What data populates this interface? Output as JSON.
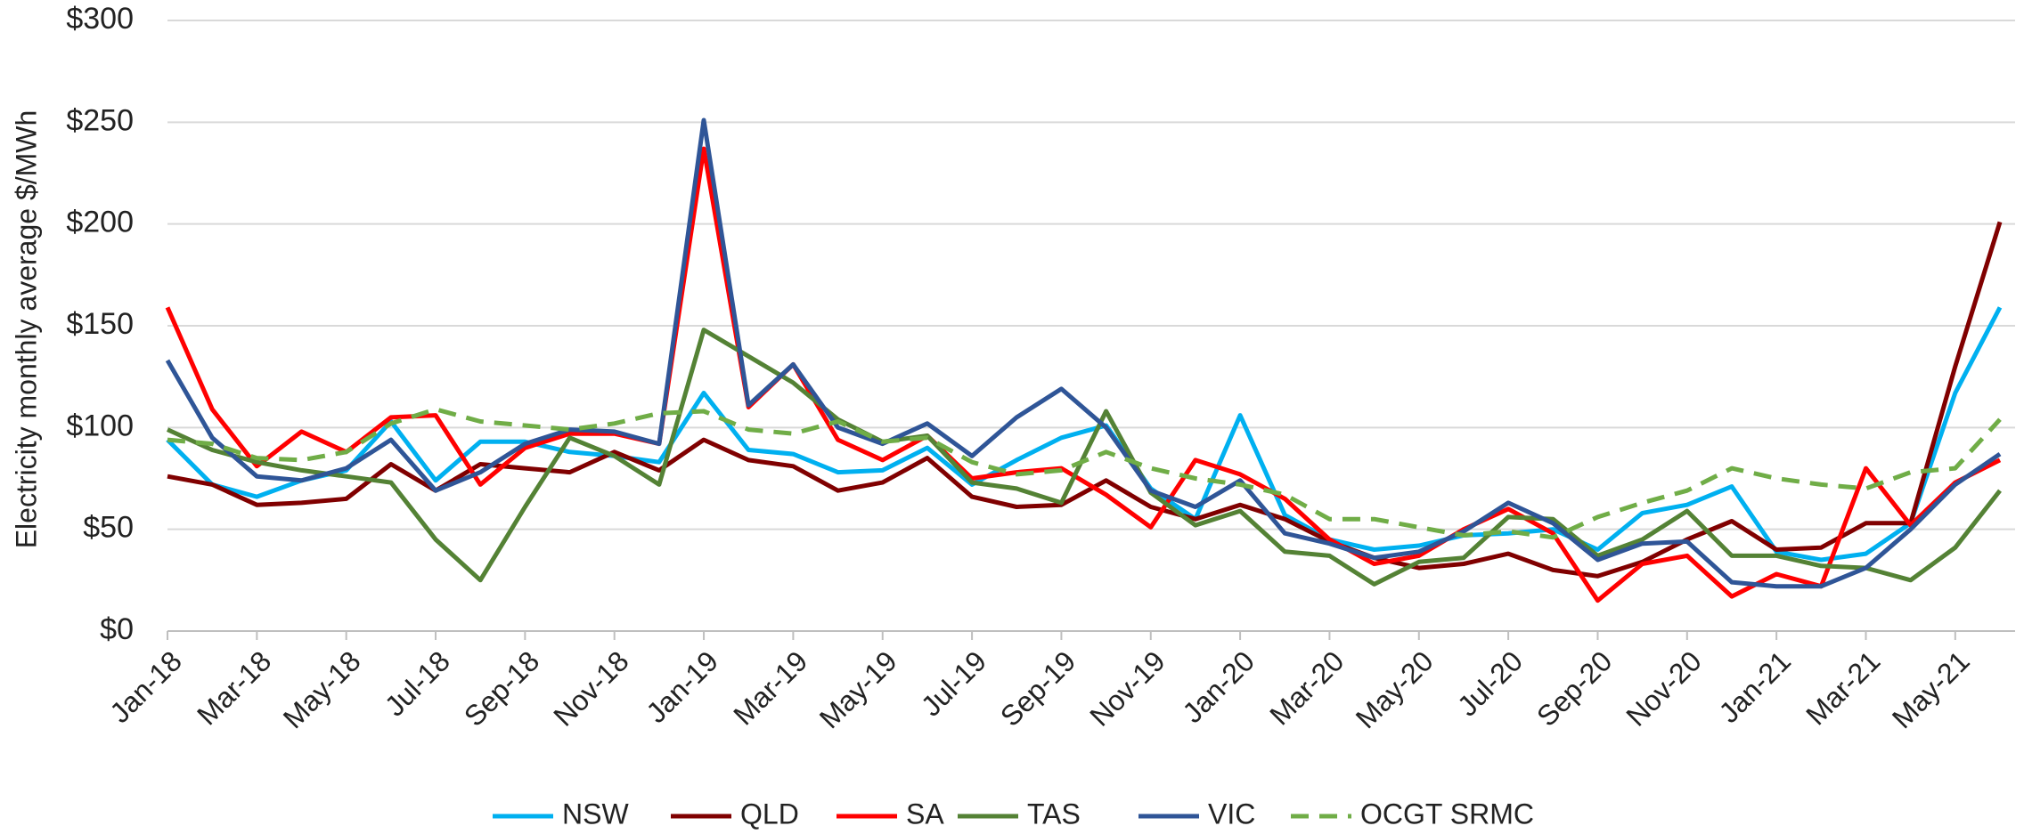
{
  "chart_data": {
    "type": "line",
    "y_label": "Electricity monthly average $/MWh",
    "categories": [
      "Jan-18",
      null,
      "Mar-18",
      null,
      "May-18",
      null,
      "Jul-18",
      null,
      "Sep-18",
      null,
      "Nov-18",
      null,
      "Jan-19",
      null,
      "Mar-19",
      null,
      "May-19",
      null,
      "Jul-19",
      null,
      "Sep-19",
      null,
      "Nov-19",
      null,
      "Jan-20",
      null,
      "Mar-20",
      null,
      "May-20",
      null,
      "Jul-20",
      null,
      "Sep-20",
      null,
      "Nov-20",
      null,
      "Jan-21",
      null,
      "Mar-21",
      null,
      "May-21",
      null
    ],
    "ylim": [
      0,
      300
    ],
    "yticks": [
      {
        "value": 0,
        "label": "$0"
      },
      {
        "value": 50,
        "label": "$50"
      },
      {
        "value": 100,
        "label": "$100"
      },
      {
        "value": 150,
        "label": "$150"
      },
      {
        "value": 200,
        "label": "$200"
      },
      {
        "value": 250,
        "label": "$250"
      },
      {
        "value": 300,
        "label": "$300"
      }
    ],
    "grid": true,
    "legend": "bottom",
    "series": [
      {
        "name": "NSW",
        "color": "#00b0f0",
        "values": [
          94,
          72,
          66,
          74,
          79,
          103,
          74,
          93,
          93,
          88,
          86,
          83,
          117,
          89,
          87,
          78,
          79,
          90,
          72,
          84,
          95,
          101,
          70,
          55,
          106,
          57,
          45,
          40,
          42,
          47,
          48,
          50,
          40,
          58,
          62,
          71,
          39,
          35,
          38,
          53,
          117,
          159
        ]
      },
      {
        "name": "QLD",
        "color": "#800000",
        "values": [
          76,
          72,
          62,
          63,
          65,
          82,
          69,
          82,
          80,
          78,
          88,
          79,
          94,
          84,
          81,
          69,
          73,
          85,
          66,
          61,
          62,
          74,
          61,
          55,
          62,
          55,
          44,
          36,
          31,
          33,
          38,
          30,
          27,
          34,
          45,
          54,
          40,
          41,
          53,
          53,
          130,
          201
        ]
      },
      {
        "name": "SA",
        "color": "#ff0000",
        "values": [
          159,
          109,
          81,
          98,
          88,
          105,
          106,
          72,
          90,
          97,
          97,
          92,
          237,
          110,
          131,
          94,
          84,
          96,
          75,
          78,
          80,
          67,
          51,
          84,
          77,
          65,
          45,
          33,
          37,
          50,
          60,
          48,
          15,
          33,
          37,
          17,
          28,
          22,
          80,
          52,
          73,
          84
        ]
      },
      {
        "name": "TAS",
        "color": "#548235",
        "values": [
          99,
          89,
          83,
          79,
          76,
          73,
          45,
          25,
          61,
          95,
          86,
          72,
          148,
          135,
          122,
          104,
          93,
          96,
          73,
          70,
          63,
          108,
          68,
          52,
          59,
          39,
          37,
          23,
          34,
          36,
          56,
          55,
          37,
          45,
          59,
          37,
          37,
          32,
          31,
          25,
          41,
          69
        ]
      },
      {
        "name": "VIC",
        "color": "#2f5597",
        "values": [
          133,
          95,
          76,
          74,
          80,
          94,
          69,
          78,
          92,
          99,
          98,
          92,
          251,
          111,
          131,
          100,
          92,
          102,
          86,
          105,
          119,
          100,
          69,
          61,
          74,
          48,
          43,
          36,
          39,
          49,
          63,
          53,
          35,
          43,
          44,
          24,
          22,
          22,
          31,
          50,
          72,
          87
        ]
      },
      {
        "name": "OCGT SRMC",
        "color": "#70ad47",
        "dashed": true,
        "values": [
          94,
          92,
          85,
          84,
          88,
          102,
          109,
          103,
          101,
          99,
          102,
          107,
          108,
          99,
          97,
          103,
          93,
          95,
          83,
          77,
          79,
          88,
          80,
          75,
          72,
          67,
          55,
          55,
          51,
          47,
          49,
          46,
          56,
          63,
          69,
          80,
          75,
          72,
          70,
          78,
          80,
          104
        ]
      }
    ]
  }
}
